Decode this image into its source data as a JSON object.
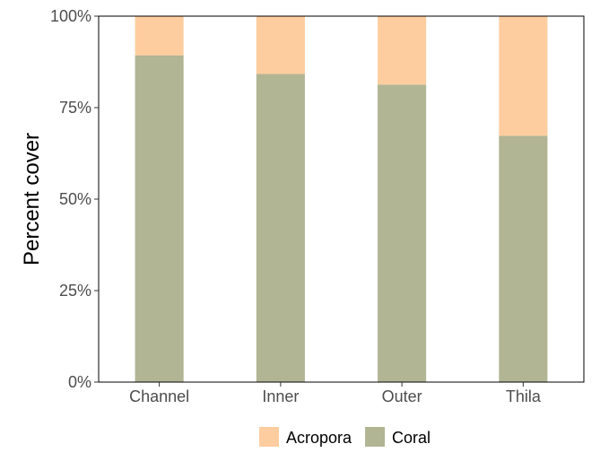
{
  "chart_data": {
    "type": "bar",
    "stacked": true,
    "percent": true,
    "title": "",
    "xlabel": "",
    "ylabel": "Percent cover",
    "categories": [
      "Channel",
      "Inner",
      "Outer",
      "Thila"
    ],
    "ylim": [
      0,
      100
    ],
    "yticks": [
      "0%",
      "25%",
      "50%",
      "75%",
      "100%"
    ],
    "yticks_values": [
      0,
      25,
      50,
      75,
      100
    ],
    "grid": false,
    "legend_position": "bottom",
    "series": [
      {
        "name": "Coral",
        "color": "#b1b593",
        "values": [
          89.3,
          84.2,
          81.3,
          67.3
        ]
      },
      {
        "name": "Acropora",
        "color": "#fecd9f",
        "values": [
          10.7,
          15.8,
          18.7,
          32.7
        ]
      }
    ],
    "legend": [
      {
        "name": "Acropora",
        "color": "#fecd9f"
      },
      {
        "name": "Coral",
        "color": "#b1b593"
      }
    ]
  }
}
